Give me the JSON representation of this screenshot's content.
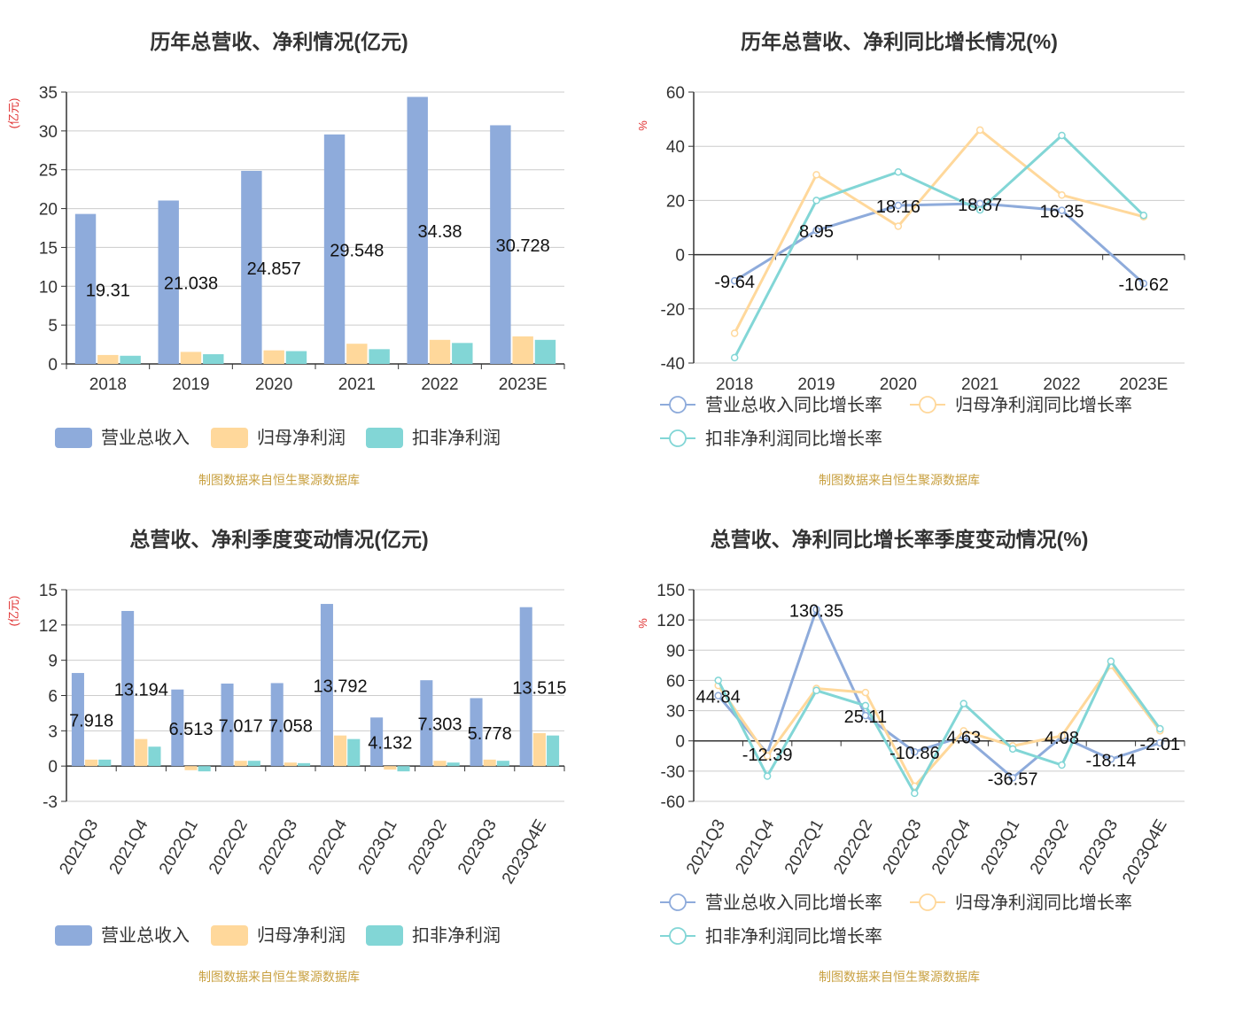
{
  "colors": {
    "revenue": "#8eabdb",
    "parent_profit": "#ffd89b",
    "deducted_profit": "#82d6d6",
    "title": "#333333",
    "axis": "#333333",
    "grid": "#cccccc",
    "unit": "#e03030",
    "source": "#c8a040"
  },
  "source_text": "制图数据来自恒生聚源数据库",
  "chart_data": [
    {
      "type": "bar",
      "title": "历年总营收、净利情况(亿元)",
      "ylabel": "(亿元)",
      "ylim": [
        0,
        35
      ],
      "yticks": [
        0,
        5,
        10,
        15,
        20,
        25,
        30,
        35
      ],
      "categories": [
        "2018",
        "2019",
        "2020",
        "2021",
        "2022",
        "2023E"
      ],
      "series": [
        {
          "name": "营业总收入",
          "values": [
            19.31,
            21.038,
            24.857,
            29.548,
            34.38,
            30.728
          ],
          "labels": [
            "19.31",
            "21.038",
            "24.857",
            "29.548",
            "34.38",
            "30.728"
          ]
        },
        {
          "name": "归母净利润",
          "values": [
            1.15,
            1.55,
            1.75,
            2.6,
            3.1,
            3.55
          ]
        },
        {
          "name": "扣非净利润",
          "values": [
            1.05,
            1.25,
            1.65,
            1.9,
            2.7,
            3.1
          ]
        }
      ],
      "grid": true,
      "legend": "bottom"
    },
    {
      "type": "line",
      "title": "历年总营收、净利同比增长情况(%)",
      "ylabel": "%",
      "ylim": [
        -40,
        60
      ],
      "yticks": [
        -40,
        -20,
        0,
        20,
        40,
        60
      ],
      "categories": [
        "2018",
        "2019",
        "2020",
        "2021",
        "2022",
        "2023E"
      ],
      "series": [
        {
          "name": "营业总收入同比增长率",
          "values": [
            -9.64,
            8.95,
            18.16,
            18.87,
            16.35,
            -10.62
          ],
          "labels": [
            "-9.64",
            "8.95",
            "18.16",
            "18.87",
            "16.35",
            "-10.62"
          ]
        },
        {
          "name": "归母净利润同比增长率",
          "values": [
            -29,
            29.5,
            10.5,
            46,
            22,
            14
          ]
        },
        {
          "name": "扣非净利润同比增长率",
          "values": [
            -38,
            20,
            30.5,
            16.5,
            44,
            14.5
          ]
        }
      ],
      "grid": true,
      "legend": "bottom"
    },
    {
      "type": "bar",
      "title": "总营收、净利季度变动情况(亿元)",
      "ylabel": "(亿元)",
      "ylim": [
        -3,
        15
      ],
      "yticks": [
        -3,
        0,
        3,
        6,
        9,
        12,
        15
      ],
      "categories": [
        "2021Q3",
        "2021Q4",
        "2022Q1",
        "2022Q2",
        "2022Q3",
        "2022Q4",
        "2023Q1",
        "2023Q2",
        "2023Q3",
        "2023Q4E"
      ],
      "series": [
        {
          "name": "营业总收入",
          "values": [
            7.918,
            13.194,
            6.513,
            7.017,
            7.058,
            13.792,
            4.132,
            7.303,
            5.778,
            13.515
          ],
          "labels": [
            "7.918",
            "13.194",
            "6.513",
            "7.017",
            "7.058",
            "13.792",
            "4.132",
            "7.303",
            "5.778",
            "13.515"
          ]
        },
        {
          "name": "归母净利润",
          "values": [
            0.55,
            2.3,
            -0.35,
            0.45,
            0.3,
            2.6,
            -0.3,
            0.45,
            0.55,
            2.8
          ]
        },
        {
          "name": "扣非净利润",
          "values": [
            0.55,
            1.65,
            -0.45,
            0.45,
            0.25,
            2.3,
            -0.45,
            0.3,
            0.45,
            2.6
          ]
        }
      ],
      "grid": true,
      "legend": "bottom"
    },
    {
      "type": "line",
      "title": "总营收、净利同比增长率季度变动情况(%)",
      "ylabel": "%",
      "ylim": [
        -60,
        150
      ],
      "yticks": [
        -60,
        -30,
        0,
        30,
        60,
        90,
        120,
        150
      ],
      "categories": [
        "2021Q3",
        "2021Q4",
        "2022Q1",
        "2022Q2",
        "2022Q3",
        "2022Q4",
        "2023Q1",
        "2023Q2",
        "2023Q3",
        "2023Q4E"
      ],
      "series": [
        {
          "name": "营业总收入同比增长率",
          "values": [
            44.84,
            -12.39,
            130.35,
            25.11,
            -10.86,
            4.63,
            -36.57,
            4.08,
            -18.14,
            -2.01
          ],
          "labels": [
            "44.84",
            "-12.39",
            "130.35",
            "25.11",
            "-10.86",
            "4.63",
            "-36.57",
            "4.08",
            "-18.14",
            "-2.01"
          ]
        },
        {
          "name": "归母净利润同比增长率",
          "values": [
            55,
            -15,
            52,
            48,
            -45,
            10,
            -5,
            5,
            75,
            10
          ]
        },
        {
          "name": "扣非净利润同比增长率",
          "values": [
            60,
            -35,
            50,
            35,
            -52,
            37,
            -8,
            -24,
            79,
            12
          ]
        }
      ],
      "grid": true,
      "legend": "bottom"
    }
  ]
}
